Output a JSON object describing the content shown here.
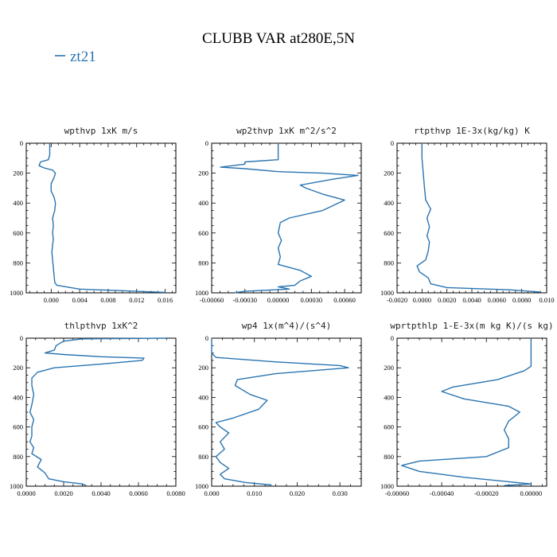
{
  "figure": {
    "title": "CLUBB VAR at280E,5N",
    "legend": [
      {
        "label": "zt21",
        "color": "#2a74b0"
      }
    ]
  },
  "chart_data": [
    {
      "type": "line",
      "title": "wpthvp  1xK m/s",
      "xlim": [
        -0.0035,
        0.0175
      ],
      "ylim": [
        1000,
        0
      ],
      "xticks": [
        0.0,
        0.004,
        0.008,
        0.012,
        0.016
      ],
      "xtick_labels": [
        "0.000",
        "0.004",
        "0.008",
        "0.012",
        "0.016"
      ],
      "yticks": [
        0,
        200,
        400,
        600,
        800,
        1000
      ],
      "ytick_labels": [
        "0",
        "200",
        "400",
        "600",
        "800",
        "1000"
      ],
      "series": [
        {
          "color": "#2a74b0",
          "points": [
            [
              -0.0002,
              0
            ],
            [
              -0.0002,
              80
            ],
            [
              -0.0004,
              110
            ],
            [
              -0.0015,
              125
            ],
            [
              -0.0017,
              150
            ],
            [
              -0.001,
              165
            ],
            [
              0.0002,
              180
            ],
            [
              0.0006,
              200
            ],
            [
              0.0004,
              230
            ],
            [
              0.0,
              270
            ],
            [
              0.0,
              320
            ],
            [
              0.0004,
              360
            ],
            [
              0.0006,
              400
            ],
            [
              0.0005,
              450
            ],
            [
              0.0002,
              500
            ],
            [
              0.0003,
              550
            ],
            [
              0.0002,
              600
            ],
            [
              0.0003,
              640
            ],
            [
              0.0002,
              680
            ],
            [
              0.0001,
              730
            ],
            [
              0.0002,
              780
            ],
            [
              0.0003,
              830
            ],
            [
              0.0004,
              880
            ],
            [
              0.0005,
              930
            ],
            [
              0.0008,
              950
            ],
            [
              0.004,
              975
            ],
            [
              0.012,
              990
            ],
            [
              0.016,
              997
            ]
          ]
        }
      ]
    },
    {
      "type": "line",
      "title": "wp2thvp  1xK m^2/s^2",
      "xlim": [
        -0.0006,
        0.00075
      ],
      "ylim": [
        1000,
        0
      ],
      "xticks": [
        -0.0006,
        -0.0003,
        0.0,
        0.0003,
        0.0006
      ],
      "xtick_labels": [
        "-0.00060",
        "-0.00030",
        "0.00000",
        "0.00030",
        "0.00060"
      ],
      "yticks": [
        0,
        200,
        400,
        600,
        800,
        1000
      ],
      "ytick_labels": [
        "0",
        "200",
        "400",
        "600",
        "800",
        "1000"
      ],
      "series": [
        {
          "color": "#2a74b0",
          "points": [
            [
              0.0,
              0
            ],
            [
              0.0,
              110
            ],
            [
              -0.0003,
              125
            ],
            [
              -0.0003,
              140
            ],
            [
              -0.00052,
              160
            ],
            [
              -0.0003,
              170
            ],
            [
              0.0,
              190
            ],
            [
              0.0004,
              200
            ],
            [
              0.00072,
              215
            ],
            [
              0.0005,
              240
            ],
            [
              0.0002,
              280
            ],
            [
              0.00025,
              300
            ],
            [
              0.0004,
              340
            ],
            [
              0.0006,
              380
            ],
            [
              0.0004,
              450
            ],
            [
              0.0001,
              500
            ],
            [
              2e-05,
              530
            ],
            [
              0.0,
              600
            ],
            [
              3e-05,
              650
            ],
            [
              0.0,
              700
            ],
            [
              2e-05,
              760
            ],
            [
              0.0,
              810
            ],
            [
              0.0002,
              850
            ],
            [
              0.0003,
              890
            ],
            [
              0.0002,
              920
            ],
            [
              0.00015,
              950
            ],
            [
              0.0,
              960
            ],
            [
              0.0001,
              975
            ],
            [
              -0.0003,
              990
            ],
            [
              -0.0004,
              1000
            ]
          ]
        }
      ]
    },
    {
      "type": "line",
      "title": "rtpthvp  1E-3x(kg/kg) K",
      "xlim": [
        -0.002,
        0.01
      ],
      "ylim": [
        1000,
        0
      ],
      "xticks": [
        -0.002,
        0.0,
        0.002,
        0.004,
        0.006,
        0.008,
        0.01
      ],
      "xtick_labels": [
        "-0.0020",
        "0.0000",
        "0.0020",
        "0.0040",
        "0.0060",
        "0.0080",
        "0.010"
      ],
      "yticks": [
        0,
        200,
        400,
        600,
        800,
        1000
      ],
      "ytick_labels": [
        "0",
        "200",
        "400",
        "600",
        "800",
        "1000"
      ],
      "series": [
        {
          "color": "#2a74b0",
          "points": [
            [
              0.0,
              0
            ],
            [
              0.0,
              100
            ],
            [
              0.0001,
              200
            ],
            [
              0.0002,
              300
            ],
            [
              0.0003,
              380
            ],
            [
              0.0007,
              440
            ],
            [
              0.0004,
              500
            ],
            [
              0.0006,
              560
            ],
            [
              0.0004,
              620
            ],
            [
              0.0006,
              660
            ],
            [
              0.0005,
              720
            ],
            [
              0.0003,
              780
            ],
            [
              -0.0004,
              820
            ],
            [
              -0.0002,
              860
            ],
            [
              0.0005,
              900
            ],
            [
              0.0007,
              940
            ],
            [
              0.002,
              965
            ],
            [
              0.007,
              980
            ],
            [
              0.0095,
              995
            ]
          ]
        }
      ]
    },
    {
      "type": "line",
      "title": "thlpthvp  1xK^2",
      "xlim": [
        0.0,
        0.008
      ],
      "ylim": [
        1000,
        0
      ],
      "xticks": [
        0.0,
        0.002,
        0.004,
        0.006,
        0.008
      ],
      "xtick_labels": [
        "0.0000",
        "0.0020",
        "0.0040",
        "0.0060",
        "0.0080"
      ],
      "yticks": [
        0,
        200,
        400,
        600,
        800,
        1000
      ],
      "ytick_labels": [
        "0",
        "200",
        "400",
        "600",
        "800",
        "1000"
      ],
      "series": [
        {
          "color": "#2a74b0",
          "points": [
            [
              0.0075,
              0
            ],
            [
              0.003,
              5
            ],
            [
              0.002,
              20
            ],
            [
              0.0016,
              50
            ],
            [
              0.0015,
              80
            ],
            [
              0.001,
              100
            ],
            [
              0.002,
              110
            ],
            [
              0.004,
              125
            ],
            [
              0.0063,
              135
            ],
            [
              0.0062,
              150
            ],
            [
              0.004,
              175
            ],
            [
              0.0015,
              200
            ],
            [
              0.0006,
              230
            ],
            [
              0.0003,
              270
            ],
            [
              0.0003,
              320
            ],
            [
              0.0004,
              380
            ],
            [
              0.0003,
              450
            ],
            [
              0.0002,
              500
            ],
            [
              0.0004,
              550
            ],
            [
              0.0003,
              600
            ],
            [
              0.0003,
              660
            ],
            [
              0.0002,
              700
            ],
            [
              0.0004,
              740
            ],
            [
              0.0003,
              780
            ],
            [
              0.0008,
              820
            ],
            [
              0.0006,
              870
            ],
            [
              0.001,
              910
            ],
            [
              0.0012,
              950
            ],
            [
              0.002,
              970
            ],
            [
              0.003,
              985
            ],
            [
              0.0032,
              995
            ]
          ]
        }
      ]
    },
    {
      "type": "line",
      "title": "wp4  1x(m^4)/(s^4)",
      "xlim": [
        0.0,
        0.035
      ],
      "ylim": [
        1000,
        0
      ],
      "xticks": [
        0.0,
        0.01,
        0.02,
        0.03
      ],
      "xtick_labels": [
        "0.000",
        "0.010",
        "0.020",
        "0.030"
      ],
      "yticks": [
        0,
        200,
        400,
        600,
        800,
        1000
      ],
      "ytick_labels": [
        "0",
        "200",
        "400",
        "600",
        "800",
        "1000"
      ],
      "series": [
        {
          "color": "#2a74b0",
          "points": [
            [
              0.0,
              0
            ],
            [
              0.0,
              100
            ],
            [
              0.001,
              130
            ],
            [
              0.015,
              160
            ],
            [
              0.03,
              185
            ],
            [
              0.032,
              200
            ],
            [
              0.015,
              240
            ],
            [
              0.006,
              280
            ],
            [
              0.0055,
              320
            ],
            [
              0.009,
              380
            ],
            [
              0.013,
              420
            ],
            [
              0.011,
              480
            ],
            [
              0.005,
              540
            ],
            [
              0.001,
              570
            ],
            [
              0.002,
              600
            ],
            [
              0.004,
              640
            ],
            [
              0.002,
              700
            ],
            [
              0.003,
              750
            ],
            [
              0.001,
              800
            ],
            [
              0.002,
              840
            ],
            [
              0.004,
              880
            ],
            [
              0.002,
              920
            ],
            [
              0.003,
              950
            ],
            [
              0.008,
              975
            ],
            [
              0.014,
              992
            ]
          ]
        }
      ]
    },
    {
      "type": "line",
      "title": "wprtpthlp  1-E-3x(m kg K)/(s kg)",
      "xlim": [
        -0.0006,
        7e-05
      ],
      "ylim": [
        1000,
        0
      ],
      "xticks": [
        -0.0006,
        -0.0004,
        -0.0002,
        0.0
      ],
      "xtick_labels": [
        "-0.00060",
        "-0.00040",
        "-0.00020",
        "0.00000"
      ],
      "yticks": [
        0,
        200,
        400,
        600,
        800,
        1000
      ],
      "ytick_labels": [
        "0",
        "200",
        "400",
        "600",
        "800",
        "1000"
      ],
      "series": [
        {
          "color": "#2a74b0",
          "points": [
            [
              0.0,
              0
            ],
            [
              0.0,
              190
            ],
            [
              -3e-05,
              220
            ],
            [
              -0.00015,
              280
            ],
            [
              -0.00035,
              330
            ],
            [
              -0.0004,
              360
            ],
            [
              -0.0003,
              410
            ],
            [
              -0.0001,
              460
            ],
            [
              -5e-05,
              500
            ],
            [
              -0.0001,
              560
            ],
            [
              -0.00012,
              620
            ],
            [
              -0.0001,
              680
            ],
            [
              -0.0001,
              740
            ],
            [
              -0.0002,
              800
            ],
            [
              -0.0005,
              830
            ],
            [
              -0.00058,
              860
            ],
            [
              -0.0005,
              900
            ],
            [
              -0.0003,
              940
            ],
            [
              -0.0001,
              970
            ],
            [
              0.0,
              985
            ],
            [
              -0.00012,
              995
            ]
          ]
        }
      ]
    }
  ]
}
